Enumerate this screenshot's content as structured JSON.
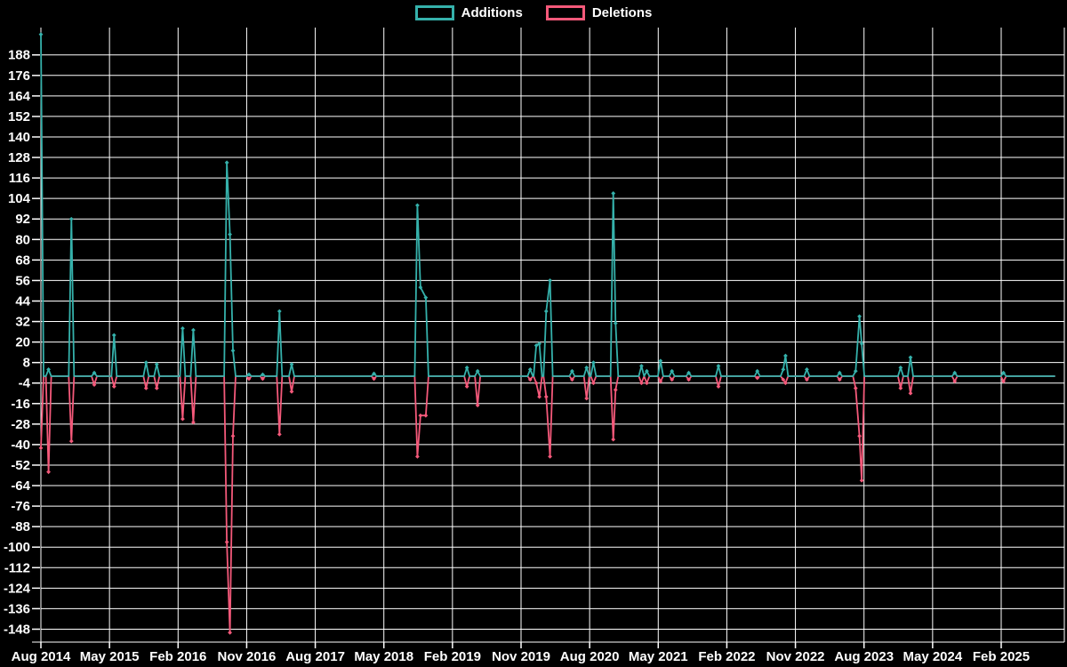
{
  "chart_data": {
    "type": "line",
    "title": "",
    "legend_position": "top-center",
    "grid": true,
    "background_color": "#000000",
    "gridline_color": "#ffffff",
    "text_color": "#ffffff",
    "x_axis": {
      "labels": [
        "Aug 2014",
        "May 2015",
        "Feb 2016",
        "Nov 2016",
        "Aug 2017",
        "May 2018",
        "Feb 2019",
        "Nov 2019",
        "Aug 2020",
        "May 2021",
        "Feb 2022",
        "Nov 2022",
        "Aug 2023",
        "May 2024",
        "Feb 2025"
      ],
      "label_month_offsets": [
        0,
        9,
        18,
        27,
        36,
        45,
        54,
        63,
        72,
        81,
        90,
        99,
        108,
        117,
        126
      ],
      "month_offset_origin": "Aug 2014"
    },
    "y_axis": {
      "ticks": [
        188,
        176,
        164,
        152,
        140,
        128,
        116,
        104,
        92,
        80,
        68,
        56,
        44,
        32,
        20,
        8,
        -4,
        -16,
        -28,
        -40,
        -52,
        -64,
        -76,
        -88,
        -100,
        -112,
        -124,
        -136,
        -148
      ],
      "ylim": [
        -154,
        204
      ]
    },
    "x_domain_months": [
      0,
      133
    ],
    "baseline": 0,
    "series": [
      {
        "name": "Additions",
        "color": "#35b1ab",
        "spikes": [
          [
            0,
            200
          ],
          [
            1,
            4
          ],
          [
            4,
            92
          ],
          [
            7,
            2
          ],
          [
            9.6,
            24
          ],
          [
            13.8,
            8
          ],
          [
            15.2,
            7
          ],
          [
            18.6,
            28
          ],
          [
            20,
            27
          ],
          [
            24.4,
            125
          ],
          [
            24.8,
            83
          ],
          [
            25.2,
            15
          ],
          [
            27.3,
            1
          ],
          [
            29.1,
            1
          ],
          [
            31.3,
            38
          ],
          [
            32.9,
            7
          ],
          [
            43.7,
            1.5
          ],
          [
            49.4,
            100
          ],
          [
            49.8,
            52
          ],
          [
            50.5,
            46
          ],
          [
            55.9,
            5
          ],
          [
            57.3,
            3
          ],
          [
            64.2,
            4
          ],
          [
            65,
            18
          ],
          [
            65.4,
            19
          ],
          [
            66.3,
            38
          ],
          [
            66.8,
            56
          ],
          [
            69.7,
            3
          ],
          [
            71.6,
            5
          ],
          [
            72.5,
            8
          ],
          [
            75.1,
            107
          ],
          [
            75.4,
            31
          ],
          [
            78.8,
            6
          ],
          [
            79.5,
            3
          ],
          [
            81.3,
            9
          ],
          [
            82.8,
            3
          ],
          [
            85,
            2
          ],
          [
            88.9,
            6
          ],
          [
            94,
            3
          ],
          [
            97.4,
            4
          ],
          [
            97.7,
            12
          ],
          [
            100.5,
            4
          ],
          [
            104.8,
            2
          ],
          [
            106.9,
            3
          ],
          [
            107.4,
            35
          ],
          [
            107.7,
            19
          ],
          [
            112.8,
            5
          ],
          [
            114.1,
            11
          ],
          [
            119.9,
            2
          ],
          [
            126.3,
            2
          ]
        ]
      },
      {
        "name": "Deletions",
        "color": "#f4597a",
        "spikes": [
          [
            0,
            -42
          ],
          [
            1,
            -56
          ],
          [
            4,
            -38
          ],
          [
            7,
            -5
          ],
          [
            9.6,
            -6
          ],
          [
            13.8,
            -7
          ],
          [
            15.2,
            -7
          ],
          [
            18.6,
            -25
          ],
          [
            20,
            -27
          ],
          [
            24.4,
            -97
          ],
          [
            24.8,
            -150
          ],
          [
            25.2,
            -35
          ],
          [
            27.3,
            -1.5
          ],
          [
            29.1,
            -1.5
          ],
          [
            31.3,
            -34
          ],
          [
            32.9,
            -9
          ],
          [
            43.7,
            -1.5
          ],
          [
            49.4,
            -47
          ],
          [
            49.8,
            -23
          ],
          [
            50.5,
            -23
          ],
          [
            55.9,
            -6
          ],
          [
            57.3,
            -17
          ],
          [
            64.2,
            -2
          ],
          [
            65,
            -4
          ],
          [
            65.4,
            -12
          ],
          [
            66.3,
            -12
          ],
          [
            66.8,
            -47
          ],
          [
            69.7,
            -2
          ],
          [
            71.6,
            -13
          ],
          [
            72.5,
            -4
          ],
          [
            75.1,
            -37
          ],
          [
            75.4,
            -8
          ],
          [
            78.8,
            -4
          ],
          [
            79.5,
            -4
          ],
          [
            81.3,
            -3
          ],
          [
            82.8,
            -2
          ],
          [
            85,
            -2
          ],
          [
            88.9,
            -6
          ],
          [
            94,
            -1
          ],
          [
            97.4,
            -2
          ],
          [
            97.7,
            -4
          ],
          [
            100.5,
            -2
          ],
          [
            104.8,
            -2
          ],
          [
            106.9,
            -7
          ],
          [
            107.4,
            -35
          ],
          [
            107.7,
            -61
          ],
          [
            112.8,
            -7
          ],
          [
            114.1,
            -10
          ],
          [
            119.9,
            -3
          ],
          [
            126.3,
            -3
          ]
        ]
      }
    ]
  }
}
